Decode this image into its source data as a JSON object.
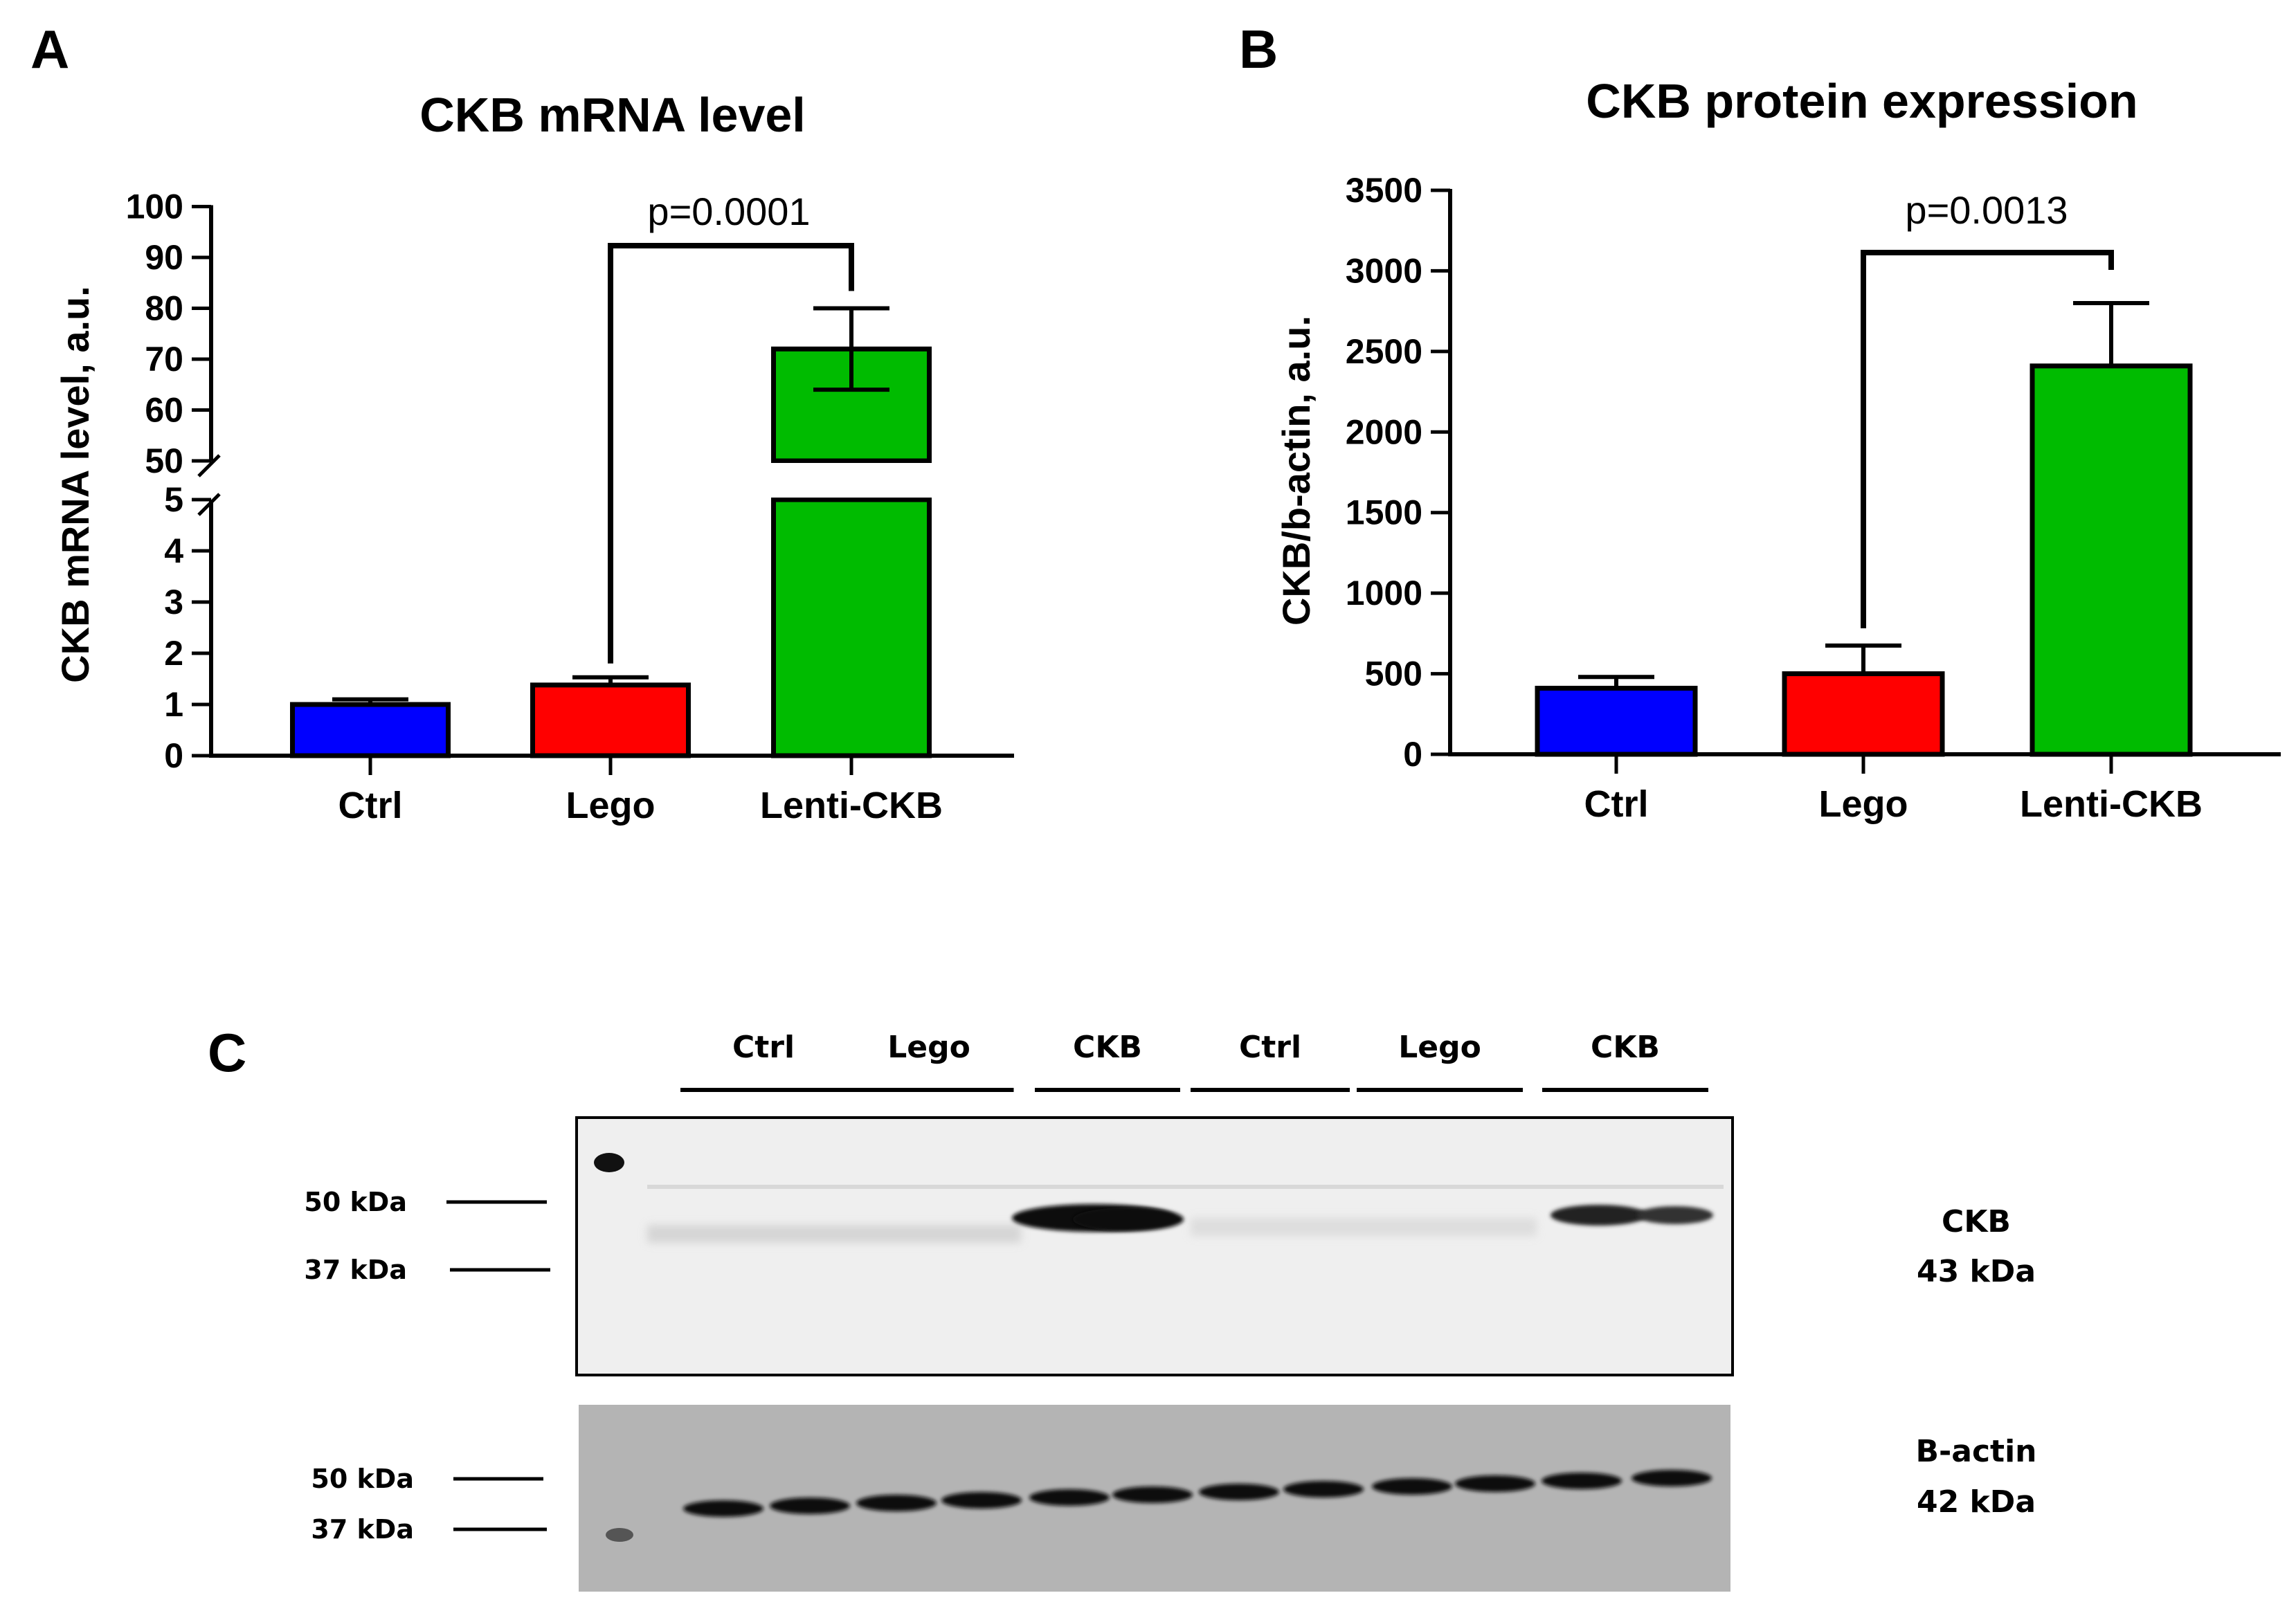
{
  "panels": {
    "a": "A",
    "b": "B",
    "c": "C"
  },
  "chart_data": [
    {
      "type": "bar",
      "title": "CKB mRNA level",
      "ylabel": "CKB mRNA level, a.u.",
      "xlabel": "",
      "categories": [
        "Ctrl",
        "Lego",
        "Lenti-CKB"
      ],
      "values": [
        1.0,
        1.38,
        72
      ],
      "errors": [
        0.1,
        0.15,
        8
      ],
      "colors": [
        "#0000ff",
        "#ff0000",
        "#00bb00"
      ],
      "axis_break": {
        "lower_range": [
          0,
          5
        ],
        "upper_range": [
          50,
          100
        ]
      },
      "yticks_lower": [
        "0",
        "1",
        "2",
        "3",
        "4",
        "5"
      ],
      "yticks_upper": [
        "50",
        "60",
        "70",
        "80",
        "90",
        "100"
      ],
      "annotation": {
        "text": "p=0.0001",
        "from": "Lego",
        "to": "Lenti-CKB"
      }
    },
    {
      "type": "bar",
      "title": "CKB protein expression",
      "ylabel": "CKB/b-actin, a.u.",
      "xlabel": "",
      "categories": [
        "Ctrl",
        "Lego",
        "Lenti-CKB"
      ],
      "values": [
        410,
        500,
        2410
      ],
      "errors": [
        70,
        175,
        390
      ],
      "colors": [
        "#0000ff",
        "#ff0000",
        "#00bb00"
      ],
      "ylim": [
        0,
        3500
      ],
      "yticks": [
        "0",
        "500",
        "1000",
        "1500",
        "2000",
        "2500",
        "3000",
        "3500"
      ],
      "annotation": {
        "text": "p=0.0013",
        "from": "Lego",
        "to": "Lenti-CKB"
      }
    }
  ],
  "blot": {
    "lanes": [
      "Ctrl",
      "Lego",
      "CKB",
      "Ctrl",
      "Lego",
      "CKB"
    ],
    "top_markers": [
      "50 kDa",
      "37 kDa"
    ],
    "bottom_markers": [
      "50 kDa",
      "37 kDa"
    ],
    "top_label": [
      "CKB",
      "43 kDa"
    ],
    "bottom_label": [
      "B-actin",
      "42 kDa"
    ]
  }
}
